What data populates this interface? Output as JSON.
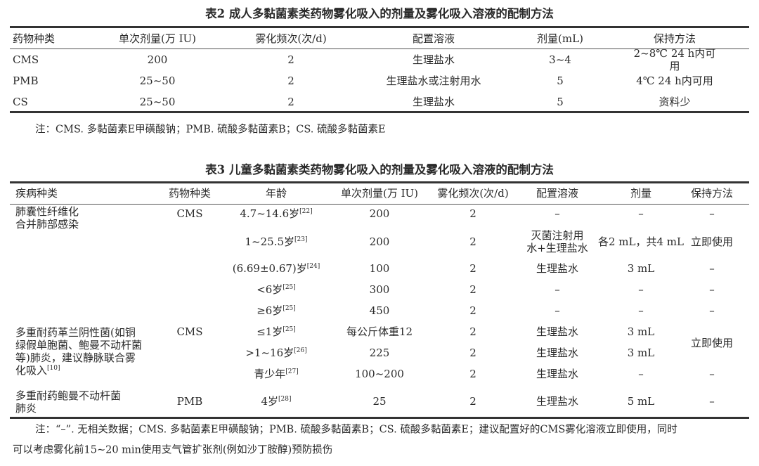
{
  "table2": {
    "title": "表2  成人多黏菌素类药物雾化吸入的剂量及雾化吸入溶液的配制方法",
    "headers": [
      "药物种类",
      "单次剂量(万 IU)",
      "雾化频次(次/d)",
      "配置溶液",
      "剂量(mL)",
      "保持方法"
    ],
    "rows": [
      [
        "CMS",
        "200",
        "2",
        "生理盐水",
        "3~4",
        "2~8℃ 24 h内可用"
      ],
      [
        "PMB",
        "25~50",
        "2",
        "生理盐水或注射用水",
        "5",
        "4℃ 24 h内可用"
      ],
      [
        "CS",
        "25~50",
        "2",
        "生理盐水",
        "5",
        "资料少"
      ]
    ],
    "note": "注：CMS. 多黏菌素E甲磺酸钠；PMB. 硫酸多黏菌素B；CS. 硫酸多黏菌素E"
  },
  "table3": {
    "title": "表3  儿童多黏菌素类药物雾化吸入的剂量及雾化吸入溶液的配制方法",
    "headers": [
      "疾病种类",
      "药物种类",
      "年龄",
      "单次剂量(万 IU)",
      "雾化频次(次/d)",
      "配置溶液",
      "剂量",
      "保持方法"
    ],
    "diseases": [
      {
        "text": "肺囊性纤维化\n合并肺部感染",
        "drug": "CMS"
      },
      {
        "text": "多重耐药革兰阴性菌(如铜\n绿假单胞菌、鲍曼不动杆菌\n等)肺炎，建议静脉联合雾\n化吸入",
        "ref": "[10]",
        "drug": "CMS"
      },
      {
        "text": "多重耐药鲍曼不动杆菌\n肺炎",
        "drug": "PMB"
      }
    ],
    "rows": [
      {
        "age": "4.7~14.6岁",
        "ref": "[22]",
        "dose": "200",
        "freq": "2",
        "solution": "–",
        "amount": "–",
        "storage": "–"
      },
      {
        "age": "1~25.5岁",
        "ref": "[23]",
        "dose": "200",
        "freq": "2",
        "solution": "灭菌注射用\n水+生理盐水",
        "amount": "各2 mL，共4 mL",
        "storage": "立即使用"
      },
      {
        "age": "(6.69±0.67)岁",
        "ref": "[24]",
        "dose": "100",
        "freq": "2",
        "solution": "生理盐水",
        "amount": "3 mL",
        "storage": "–"
      },
      {
        "age": "<6岁",
        "ref": "[25]",
        "dose": "300",
        "freq": "2",
        "solution": "–",
        "amount": "–",
        "storage": "–"
      },
      {
        "age": "≥6岁",
        "ref": "[25]",
        "dose": "450",
        "freq": "2",
        "solution": "–",
        "amount": "–",
        "storage": "–"
      },
      {
        "age": "≤1岁",
        "ref": "[25]",
        "dose": "每公斤体重12",
        "freq": "2",
        "solution": "生理盐水",
        "amount": "3 mL",
        "storage": ""
      },
      {
        "age": ">1~16岁",
        "ref": "[26]",
        "dose": "225",
        "freq": "2",
        "solution": "生理盐水",
        "amount": "3 mL",
        "storage": ""
      },
      {
        "age": "青少年",
        "ref": "[27]",
        "dose": "100~200",
        "freq": "2",
        "solution": "生理盐水",
        "amount": "–",
        "storage": "–"
      },
      {
        "age": "4岁",
        "ref": "[28]",
        "dose": "25",
        "freq": "2",
        "solution": "生理盐水",
        "amount": "5 mL",
        "storage": "–"
      }
    ],
    "merged_storage": "立即使用",
    "note_line1": "注：“–”. 无相关数据；CMS. 多黏菌素E甲磺酸钠；PMB. 硫酸多黏菌素B；CS. 硫酸多黏菌素E；建议配置好的CMS雾化溶液立即使用，同时",
    "note_line2": "可以考虑雾化前15~20 min使用支气管扩张剂(例如沙丁胺醇)预防损伤"
  }
}
